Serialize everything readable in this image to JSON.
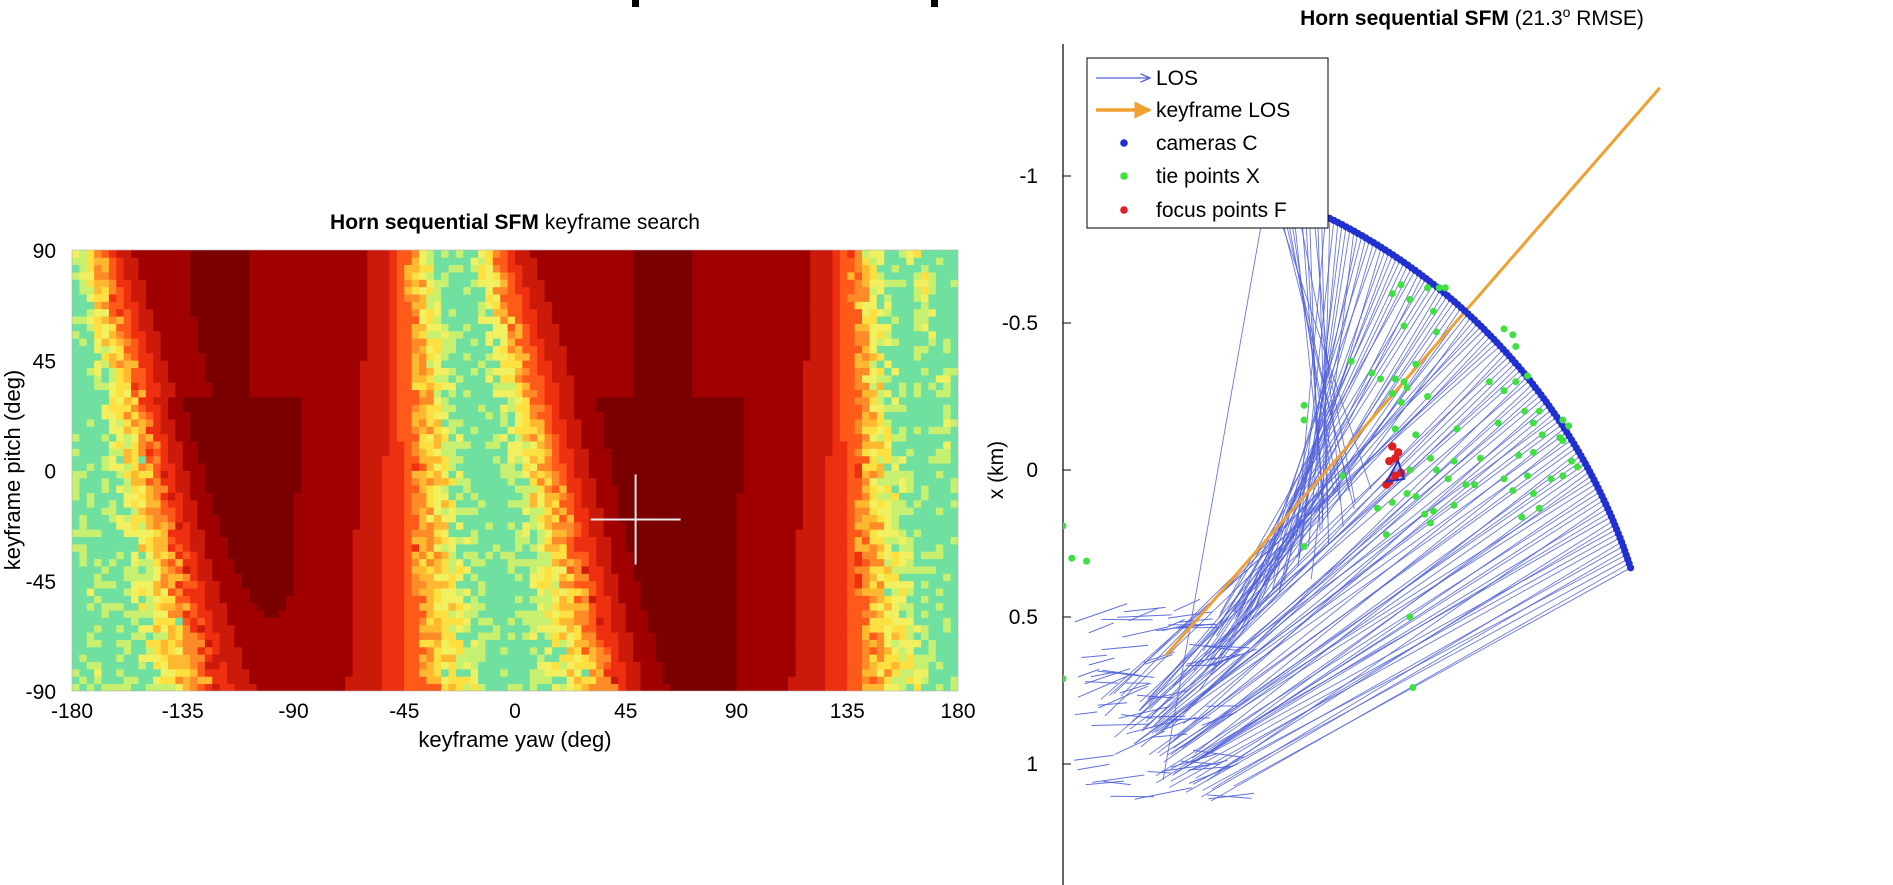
{
  "chart_data": [
    {
      "type": "heatmap",
      "title": {
        "bold": "Horn sequential SFM",
        "rest": " keyframe search"
      },
      "xlabel": "keyframe yaw (deg)",
      "ylabel": "keyframe pitch (deg)",
      "xlim": [
        -180,
        180
      ],
      "ylim": [
        -90,
        90
      ],
      "xticks": [
        -180,
        -135,
        -90,
        -45,
        0,
        45,
        90,
        135,
        180
      ],
      "yticks": [
        90,
        45,
        0,
        -45,
        -90
      ],
      "colormap": [
        "#7a0000",
        "#a00000",
        "#cc1a0a",
        "#ee3010",
        "#ff5a1a",
        "#ff8a28",
        "#ffb830",
        "#ffe040",
        "#f0f060",
        "#c8f070",
        "#70e0a0"
      ],
      "bright_band_centers_deg": [
        -172,
        -12,
        168
      ],
      "dark_valley_centers_deg": [
        -120,
        60
      ],
      "marker": {
        "yaw": 49,
        "pitch": -20,
        "symbol": "+",
        "color": "#e8e8e8"
      }
    },
    {
      "type": "scatter",
      "title": {
        "bold": "Horn sequential SFM",
        "rest": " (21.3",
        "sup": "o",
        "rest2": " RMSE)"
      },
      "ylabel": "x  (km)",
      "ylim": [
        -1.4,
        1.4
      ],
      "y_reversed": true,
      "yticks": [
        -1,
        -0.5,
        0,
        0.5,
        1
      ],
      "legend": {
        "position": "top-left",
        "entries": [
          {
            "label": "LOS",
            "color": "#5060d8",
            "symbol": "thin-arrow"
          },
          {
            "label": "keyframe LOS",
            "color": "#f0a030",
            "symbol": "thick-arrow"
          },
          {
            "label": "cameras C",
            "color": "#2030d0",
            "symbol": "dot"
          },
          {
            "label": "tie points X",
            "color": "#40e040",
            "symbol": "dot"
          },
          {
            "label": "focus points F",
            "color": "#e02020",
            "symbol": "dot"
          }
        ]
      },
      "cameras_arc": {
        "center_x": 0,
        "center_y": 0.96,
        "radius_km": 2.03,
        "start_angle_deg": 108,
        "end_angle_deg": 160,
        "count": 120
      },
      "keyframe_los": {
        "from": [
          2.03,
          -1.3
        ],
        "to": [
          0.35,
          0.63
        ]
      },
      "tie_points": [
        [
          1.15,
          -0.63
        ],
        [
          1.24,
          -0.62
        ],
        [
          1.28,
          -0.62
        ],
        [
          1.3,
          -0.62
        ],
        [
          1.12,
          -0.6
        ],
        [
          1.18,
          -0.58
        ],
        [
          1.26,
          -0.54
        ],
        [
          1.16,
          -0.49
        ],
        [
          1.27,
          -0.47
        ],
        [
          1.5,
          -0.48
        ],
        [
          1.53,
          -0.46
        ],
        [
          1.54,
          -0.42
        ],
        [
          0.98,
          -0.37
        ],
        [
          1.05,
          -0.33
        ],
        [
          1.08,
          -0.31
        ],
        [
          1.13,
          -0.31
        ],
        [
          1.16,
          -0.3
        ],
        [
          1.17,
          -0.28
        ],
        [
          1.2,
          -0.36
        ],
        [
          1.12,
          -0.26
        ],
        [
          1.15,
          -0.23
        ],
        [
          1.24,
          -0.25
        ],
        [
          1.45,
          -0.3
        ],
        [
          1.5,
          -0.27
        ],
        [
          1.54,
          -0.3
        ],
        [
          1.58,
          -0.32
        ],
        [
          0.82,
          -0.22
        ],
        [
          0.82,
          -0.17
        ],
        [
          1.13,
          -0.14
        ],
        [
          1.2,
          -0.12
        ],
        [
          1.34,
          -0.14
        ],
        [
          1.48,
          -0.16
        ],
        [
          1.57,
          -0.2
        ],
        [
          1.62,
          -0.2
        ],
        [
          1.7,
          -0.17
        ],
        [
          1.72,
          -0.15
        ],
        [
          1.6,
          -0.16
        ],
        [
          1.63,
          -0.12
        ],
        [
          1.69,
          -0.11
        ],
        [
          1.25,
          -0.04
        ],
        [
          1.33,
          -0.03
        ],
        [
          1.42,
          -0.04
        ],
        [
          1.55,
          -0.05
        ],
        [
          1.6,
          -0.06
        ],
        [
          1.7,
          -0.1
        ],
        [
          1.73,
          -0.03
        ],
        [
          1.75,
          -0.01
        ],
        [
          1.18,
          0.0
        ],
        [
          1.27,
          0.0
        ],
        [
          1.31,
          0.03
        ],
        [
          1.37,
          0.05
        ],
        [
          1.4,
          0.05
        ],
        [
          1.5,
          0.03
        ],
        [
          1.58,
          0.02
        ],
        [
          1.66,
          0.03
        ],
        [
          1.7,
          0.02
        ],
        [
          0.95,
          0.02
        ],
        [
          1.2,
          0.09
        ],
        [
          1.26,
          0.14
        ],
        [
          1.33,
          0.12
        ],
        [
          1.53,
          0.07
        ],
        [
          1.6,
          0.08
        ],
        [
          1.62,
          0.13
        ],
        [
          1.56,
          0.16
        ],
        [
          1.07,
          0.13
        ],
        [
          1.12,
          0.11
        ],
        [
          1.17,
          0.08
        ],
        [
          1.1,
          0.22
        ],
        [
          1.23,
          0.15
        ],
        [
          1.25,
          0.18
        ],
        [
          0.0,
          0.19
        ],
        [
          0.03,
          0.3
        ],
        [
          0.08,
          0.31
        ],
        [
          0.82,
          0.26
        ],
        [
          1.18,
          0.5
        ],
        [
          0.0,
          0.71
        ],
        [
          1.19,
          0.74
        ]
      ],
      "focus_points": [
        [
          1.12,
          -0.08
        ],
        [
          1.14,
          -0.06
        ],
        [
          1.11,
          -0.03
        ],
        [
          1.13,
          -0.04
        ],
        [
          1.13,
          0.02
        ],
        [
          1.15,
          0.01
        ],
        [
          1.11,
          0.04
        ],
        [
          1.1,
          0.05
        ]
      ]
    }
  ]
}
